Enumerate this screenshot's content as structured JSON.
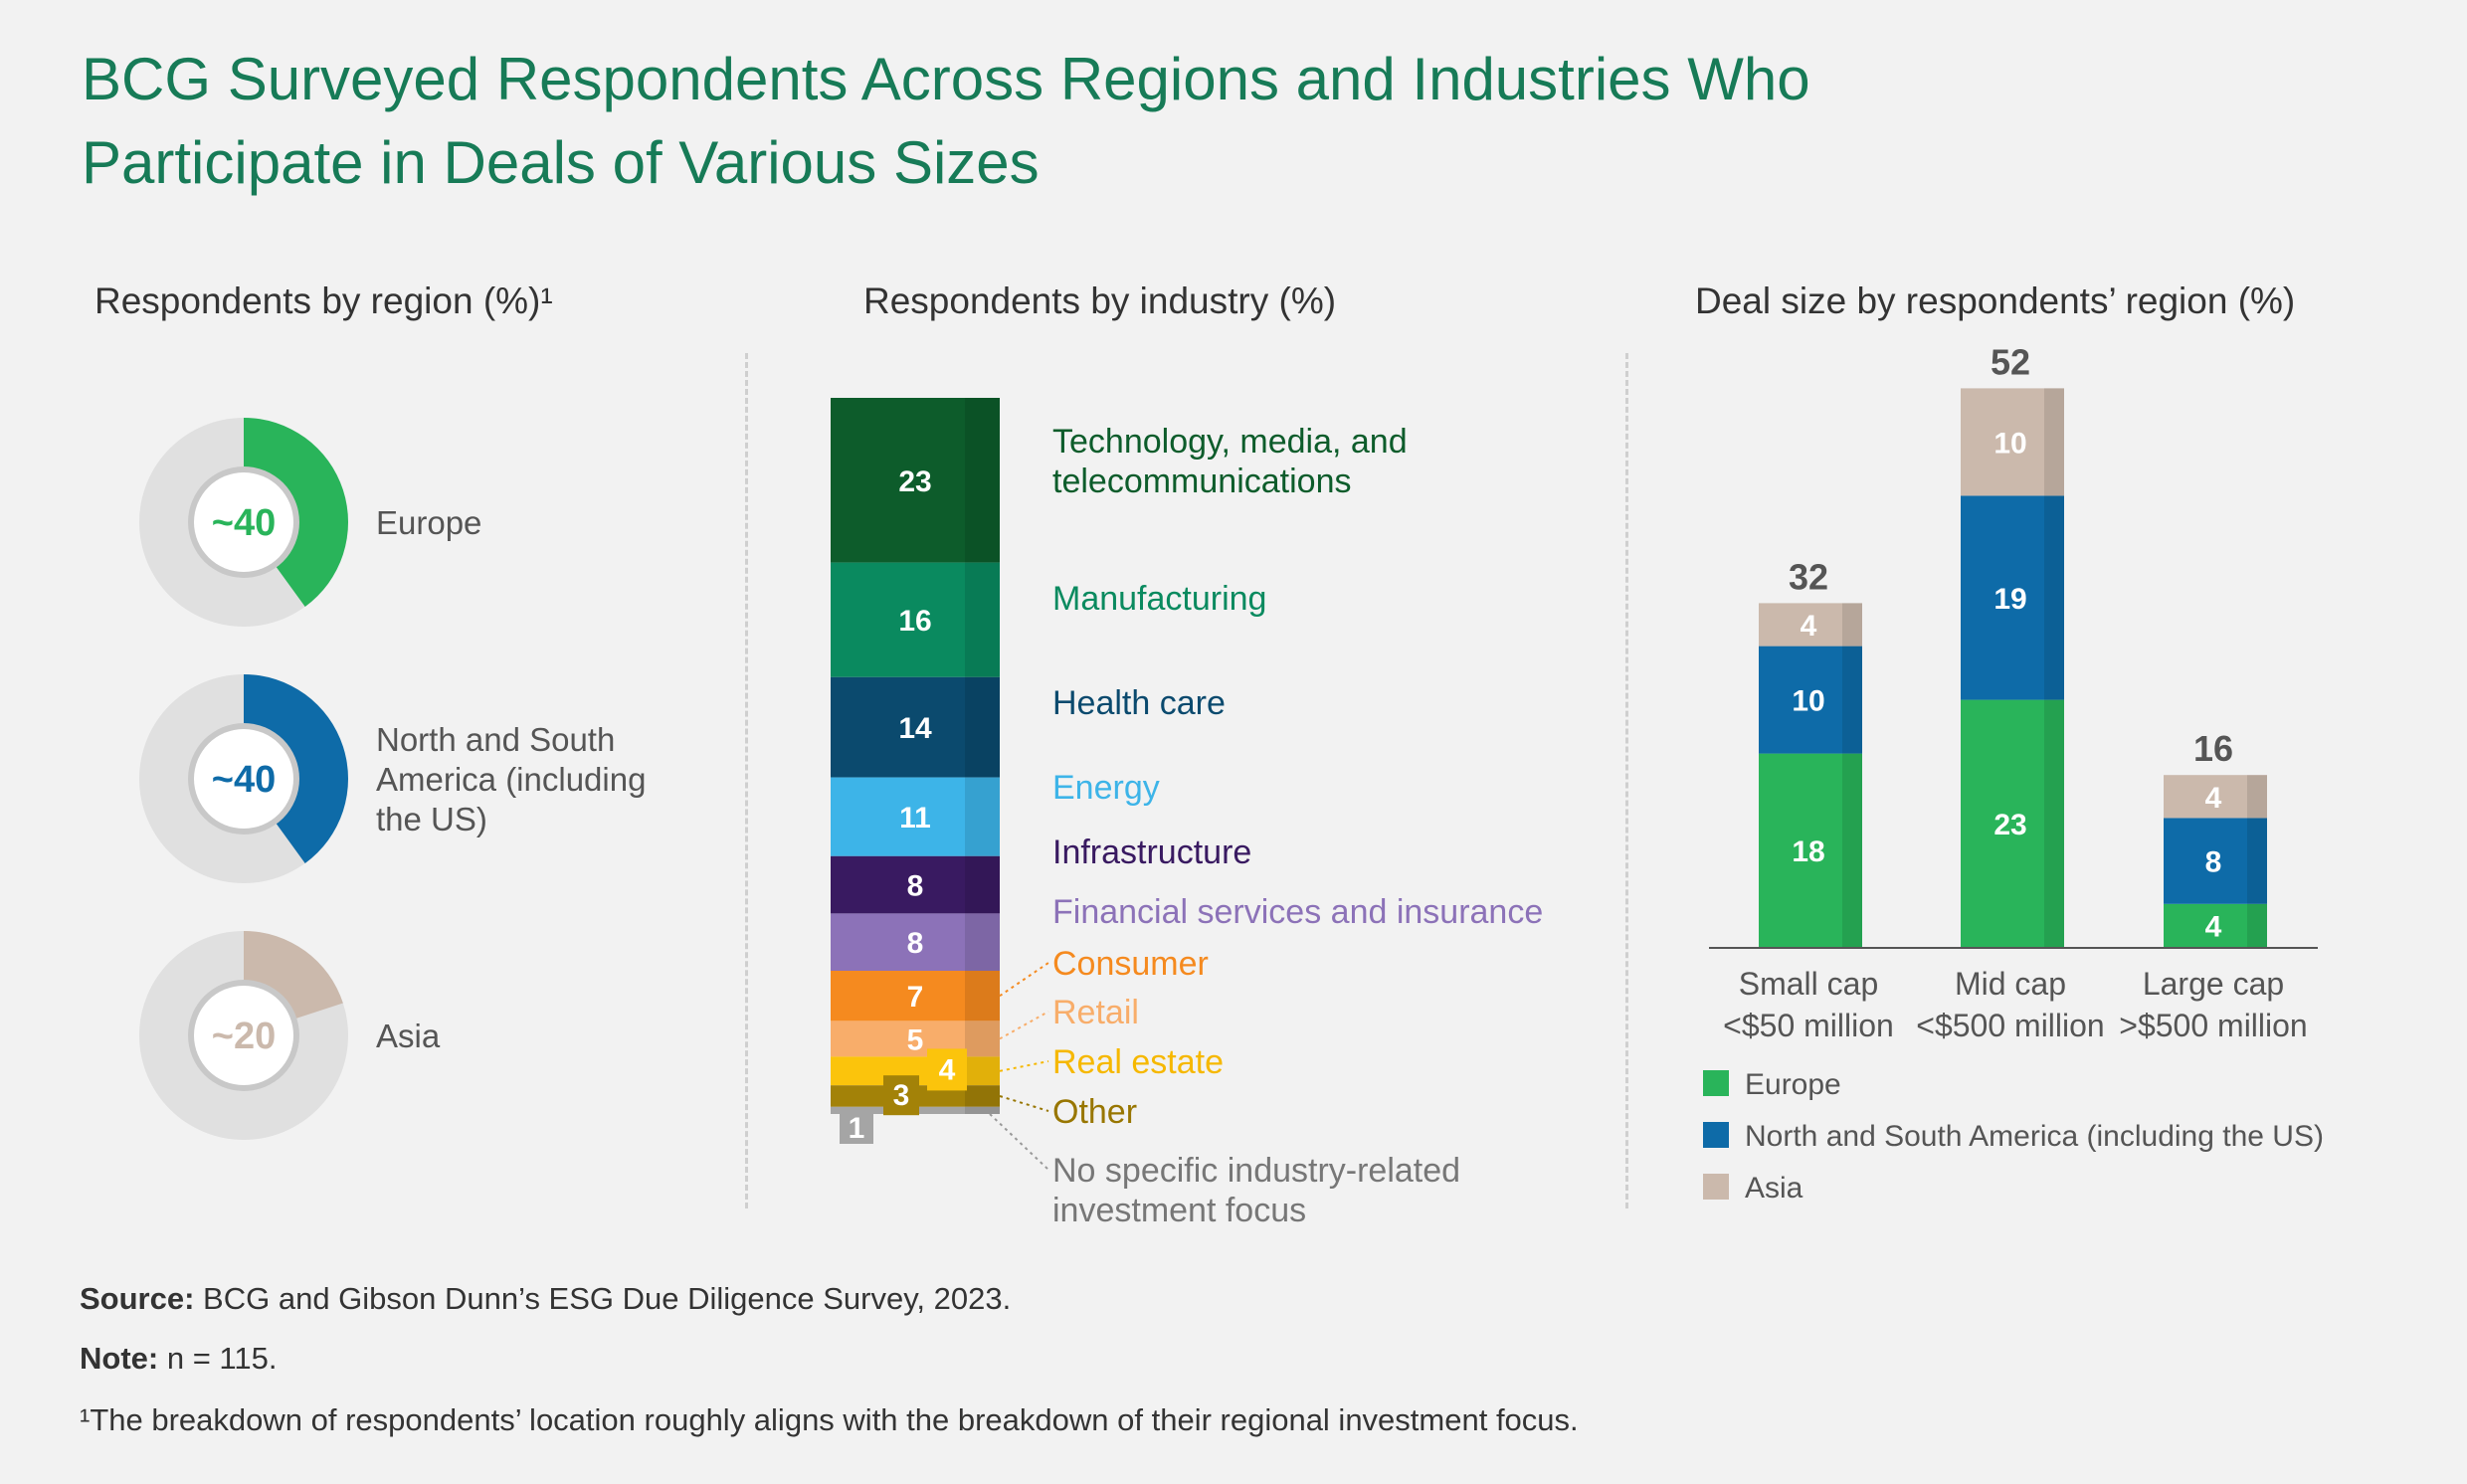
{
  "title_line1": "BCG Surveyed Respondents Across Regions and Industries Who",
  "title_line2": "Participate in Deals of Various Sizes",
  "panels": {
    "region_title": "Respondents by region (%)¹",
    "industry_title": "Respondents by industry (%)",
    "deal_title": "Deal size by respondents’ region (%)"
  },
  "chart_data": [
    {
      "type": "pie",
      "title": "Respondents by region (%)¹",
      "slices": [
        {
          "label_lines": [
            "Europe"
          ],
          "value": 40,
          "display": "~40",
          "color": "#29b45a"
        },
        {
          "label_lines": [
            "North and South",
            "America (including",
            "the US)"
          ],
          "value": 40,
          "display": "~40",
          "color": "#0e6ba8"
        },
        {
          "label_lines": [
            "Asia"
          ],
          "value": 20,
          "display": "~20",
          "color": "#cbb9ac"
        }
      ]
    },
    {
      "type": "bar",
      "title": "Respondents by industry (%)",
      "segments": [
        {
          "label_lines": [
            "Technology, media, and",
            "telecommunications"
          ],
          "value": 23,
          "color": "#0d5c2b",
          "text_color": "#0d5c2b"
        },
        {
          "label_lines": [
            "Manufacturing"
          ],
          "value": 16,
          "color": "#0a8a5f",
          "text_color": "#0a8a5f"
        },
        {
          "label_lines": [
            "Health care"
          ],
          "value": 14,
          "color": "#0b4a6e",
          "text_color": "#0b4a6e"
        },
        {
          "label_lines": [
            "Energy"
          ],
          "value": 11,
          "color": "#3db4e8",
          "text_color": "#3db4e8"
        },
        {
          "label_lines": [
            "Infrastructure"
          ],
          "value": 8,
          "color": "#391a61",
          "text_color": "#391a61"
        },
        {
          "label_lines": [
            "Financial services and insurance"
          ],
          "value": 8,
          "color": "#8c72b8",
          "text_color": "#8c72b8"
        },
        {
          "label_lines": [
            "Consumer"
          ],
          "value": 7,
          "color": "#f58a1f",
          "text_color": "#f58a1f"
        },
        {
          "label_lines": [
            "Retail"
          ],
          "value": 5,
          "color": "#f8ad6a",
          "text_color": "#f8ad6a"
        },
        {
          "label_lines": [
            "Real estate"
          ],
          "value": 4,
          "color": "#fbc40c",
          "text_color": "#f6b800"
        },
        {
          "label_lines": [
            "Other"
          ],
          "value": 3,
          "color": "#a38208",
          "text_color": "#987600"
        },
        {
          "label_lines": [
            "No specific industry-related",
            "investment focus"
          ],
          "value": 1,
          "color": "#a5a5a5",
          "text_color": "#777777"
        }
      ]
    },
    {
      "type": "bar",
      "title": "Deal size by respondents’ region (%)",
      "categories": [
        {
          "label_lines": [
            "Small cap",
            "<$50 million"
          ],
          "total": 32
        },
        {
          "label_lines": [
            "Mid cap",
            "<$500 million"
          ],
          "total": 52
        },
        {
          "label_lines": [
            "Large cap",
            ">$500 million"
          ],
          "total": 16
        }
      ],
      "series": [
        {
          "name": "Europe",
          "values": [
            18,
            23,
            4
          ],
          "color": "#29b45a"
        },
        {
          "name": "North and South America (including the US)",
          "values": [
            10,
            19,
            8
          ],
          "color": "#0e6ba8"
        },
        {
          "name": "Asia",
          "values": [
            4,
            10,
            4
          ],
          "color": "#cbb9ac"
        }
      ],
      "ylim": [
        0,
        52
      ]
    }
  ],
  "footer": {
    "source_label": "Source:",
    "source_text": "BCG and Gibson Dunn’s ESG Due Diligence Survey, 2023.",
    "note_label": "Note:",
    "note_text": "n = 115.",
    "footnote": "¹The breakdown of respondents’ location roughly aligns with the breakdown of their regional investment focus."
  }
}
